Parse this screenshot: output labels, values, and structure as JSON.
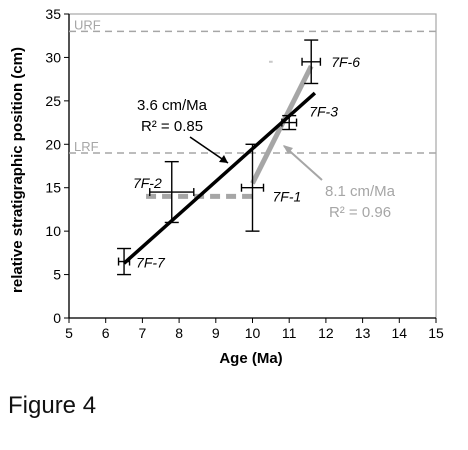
{
  "caption": "Figure 4",
  "chart_data": {
    "type": "scatter",
    "xlabel": "Age (Ma)",
    "ylabel": "relative stratigraphic position (cm)",
    "xlim": [
      5,
      15
    ],
    "ylim": [
      0,
      35
    ],
    "xticks": [
      5,
      6,
      7,
      8,
      9,
      10,
      11,
      12,
      13,
      14,
      15
    ],
    "yticks": [
      0,
      5,
      10,
      15,
      20,
      25,
      30,
      35
    ],
    "grid": false,
    "reference_lines": [
      {
        "label": "URF",
        "y": 33,
        "color": "#a6a6a6"
      },
      {
        "label": "LRF",
        "y": 19,
        "color": "#a6a6a6"
      }
    ],
    "points": [
      {
        "label": "7F-7",
        "x": 6.5,
        "y": 6.5,
        "x_err": 0.15,
        "y_err": 1.5
      },
      {
        "label": "7F-2",
        "x": 7.8,
        "y": 14.5,
        "x_err": 0.6,
        "y_err": 3.5
      },
      {
        "label": "7F-1",
        "x": 10.0,
        "y": 15.0,
        "x_err": 0.3,
        "y_err": 5.0
      },
      {
        "label": "7F-3",
        "x": 11.0,
        "y": 22.5,
        "x_err": 0.2,
        "y_err": 0.8
      },
      {
        "label": "7F-6",
        "x": 11.6,
        "y": 29.5,
        "x_err": 0.25,
        "y_err": 2.5
      }
    ],
    "fits": [
      {
        "rate": "3.6 cm/Ma",
        "r2": "R² = 0.85",
        "color": "#000000",
        "x": [
          6.5,
          11.7
        ],
        "y": [
          6.3,
          25.9
        ]
      },
      {
        "rate": "8.1 cm/Ma",
        "r2": "R² = 0.96",
        "color": "#a6a6a6",
        "x": [
          10.0,
          11.6
        ],
        "y": [
          15.5,
          29.0
        ]
      }
    ],
    "dashed_segment": {
      "color": "#a6a6a6",
      "x": [
        7.1,
        10.0
      ],
      "y": [
        14.0,
        14.0
      ]
    }
  }
}
